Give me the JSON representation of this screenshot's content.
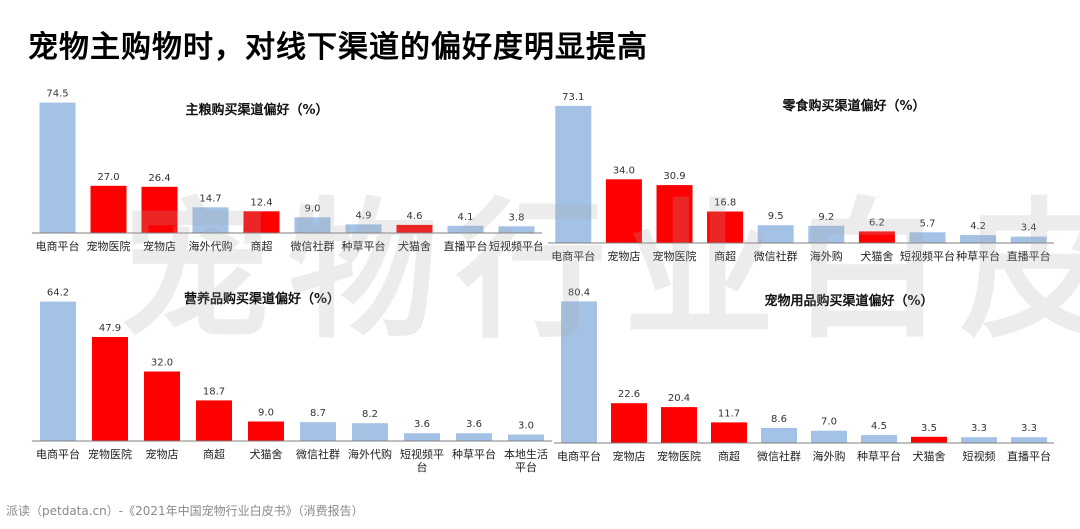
{
  "page": {
    "title": "宠物主购物时，对线下渠道的偏好度明显提高",
    "watermark": "宠物行业白皮书",
    "footer": "派读（petdata.cn）-《2021年中国宠物行业白皮书》（消费报告）"
  },
  "colors": {
    "online": "#a4c2e6",
    "offline": "#ff0000"
  },
  "chart_data": [
    {
      "type": "bar",
      "title": "主粮购买渠道偏好（%）",
      "categories": [
        "电商平台",
        "宠物医院",
        "宠物店",
        "海外代购",
        "商超",
        "微信社群",
        "种草平台",
        "犬猫舍",
        "直播平台",
        "短视频平台"
      ],
      "values": [
        74.5,
        27.0,
        26.4,
        14.7,
        12.4,
        9.0,
        4.9,
        4.6,
        4.1,
        3.8
      ],
      "value_labels": [
        "74.5",
        "27.0",
        "26.4",
        "14.7",
        "12.4",
        "9.0",
        "4.9",
        "4.6",
        "4.1",
        "3.8"
      ],
      "channel_type": [
        "online",
        "offline",
        "offline",
        "online",
        "offline",
        "online",
        "online",
        "offline",
        "online",
        "online"
      ],
      "ylim": [
        0,
        80
      ]
    },
    {
      "type": "bar",
      "title": "零食购买渠道偏好（%）",
      "categories": [
        "电商平台",
        "宠物店",
        "宠物医院",
        "商超",
        "微信社群",
        "海外购",
        "犬猫舍",
        "短视频平台",
        "种草平台",
        "直播平台"
      ],
      "values": [
        73.1,
        34.0,
        30.9,
        16.8,
        9.5,
        9.2,
        6.2,
        5.7,
        4.2,
        3.4
      ],
      "value_labels": [
        "73.1",
        "34.0",
        "30.9",
        "16.8",
        "9.5",
        "9.2",
        "6.2",
        "5.7",
        "4.2",
        "3.4"
      ],
      "channel_type": [
        "online",
        "offline",
        "offline",
        "offline",
        "online",
        "online",
        "offline",
        "online",
        "online",
        "online"
      ],
      "ylim": [
        0,
        80
      ]
    },
    {
      "type": "bar",
      "title": "营养品购买渠道偏好（%）",
      "categories": [
        "电商平台",
        "宠物医院",
        "宠物店",
        "商超",
        "犬猫舍",
        "微信社群",
        "海外代购",
        "短视频平台",
        "种草平台",
        "本地生活平台"
      ],
      "values": [
        64.2,
        47.9,
        32.0,
        18.7,
        9.0,
        8.7,
        8.2,
        3.6,
        3.6,
        3.0
      ],
      "value_labels": [
        "64.2",
        "47.9",
        "32.0",
        "18.7",
        "9.0",
        "8.7",
        "8.2",
        "3.6",
        "3.6",
        "3.0"
      ],
      "channel_type": [
        "online",
        "offline",
        "offline",
        "offline",
        "offline",
        "online",
        "online",
        "online",
        "online",
        "online"
      ],
      "ylim": [
        0,
        70
      ]
    },
    {
      "type": "bar",
      "title": "宠物用品购买渠道偏好（%）",
      "categories": [
        "电商平台",
        "宠物店",
        "宠物医院",
        "商超",
        "微信社群",
        "海外购",
        "种草平台",
        "犬猫舍",
        "短视频",
        "直播平台"
      ],
      "values": [
        80.4,
        22.6,
        20.4,
        11.7,
        8.6,
        7.0,
        4.5,
        3.5,
        3.3,
        3.3
      ],
      "value_labels": [
        "80.4",
        "22.6",
        "20.4",
        "11.7",
        "8.6",
        "7.0",
        "4.5",
        "3.5",
        "3.3",
        "3.3"
      ],
      "channel_type": [
        "online",
        "offline",
        "offline",
        "offline",
        "online",
        "online",
        "online",
        "offline",
        "online",
        "online"
      ],
      "ylim": [
        0,
        88
      ]
    }
  ]
}
